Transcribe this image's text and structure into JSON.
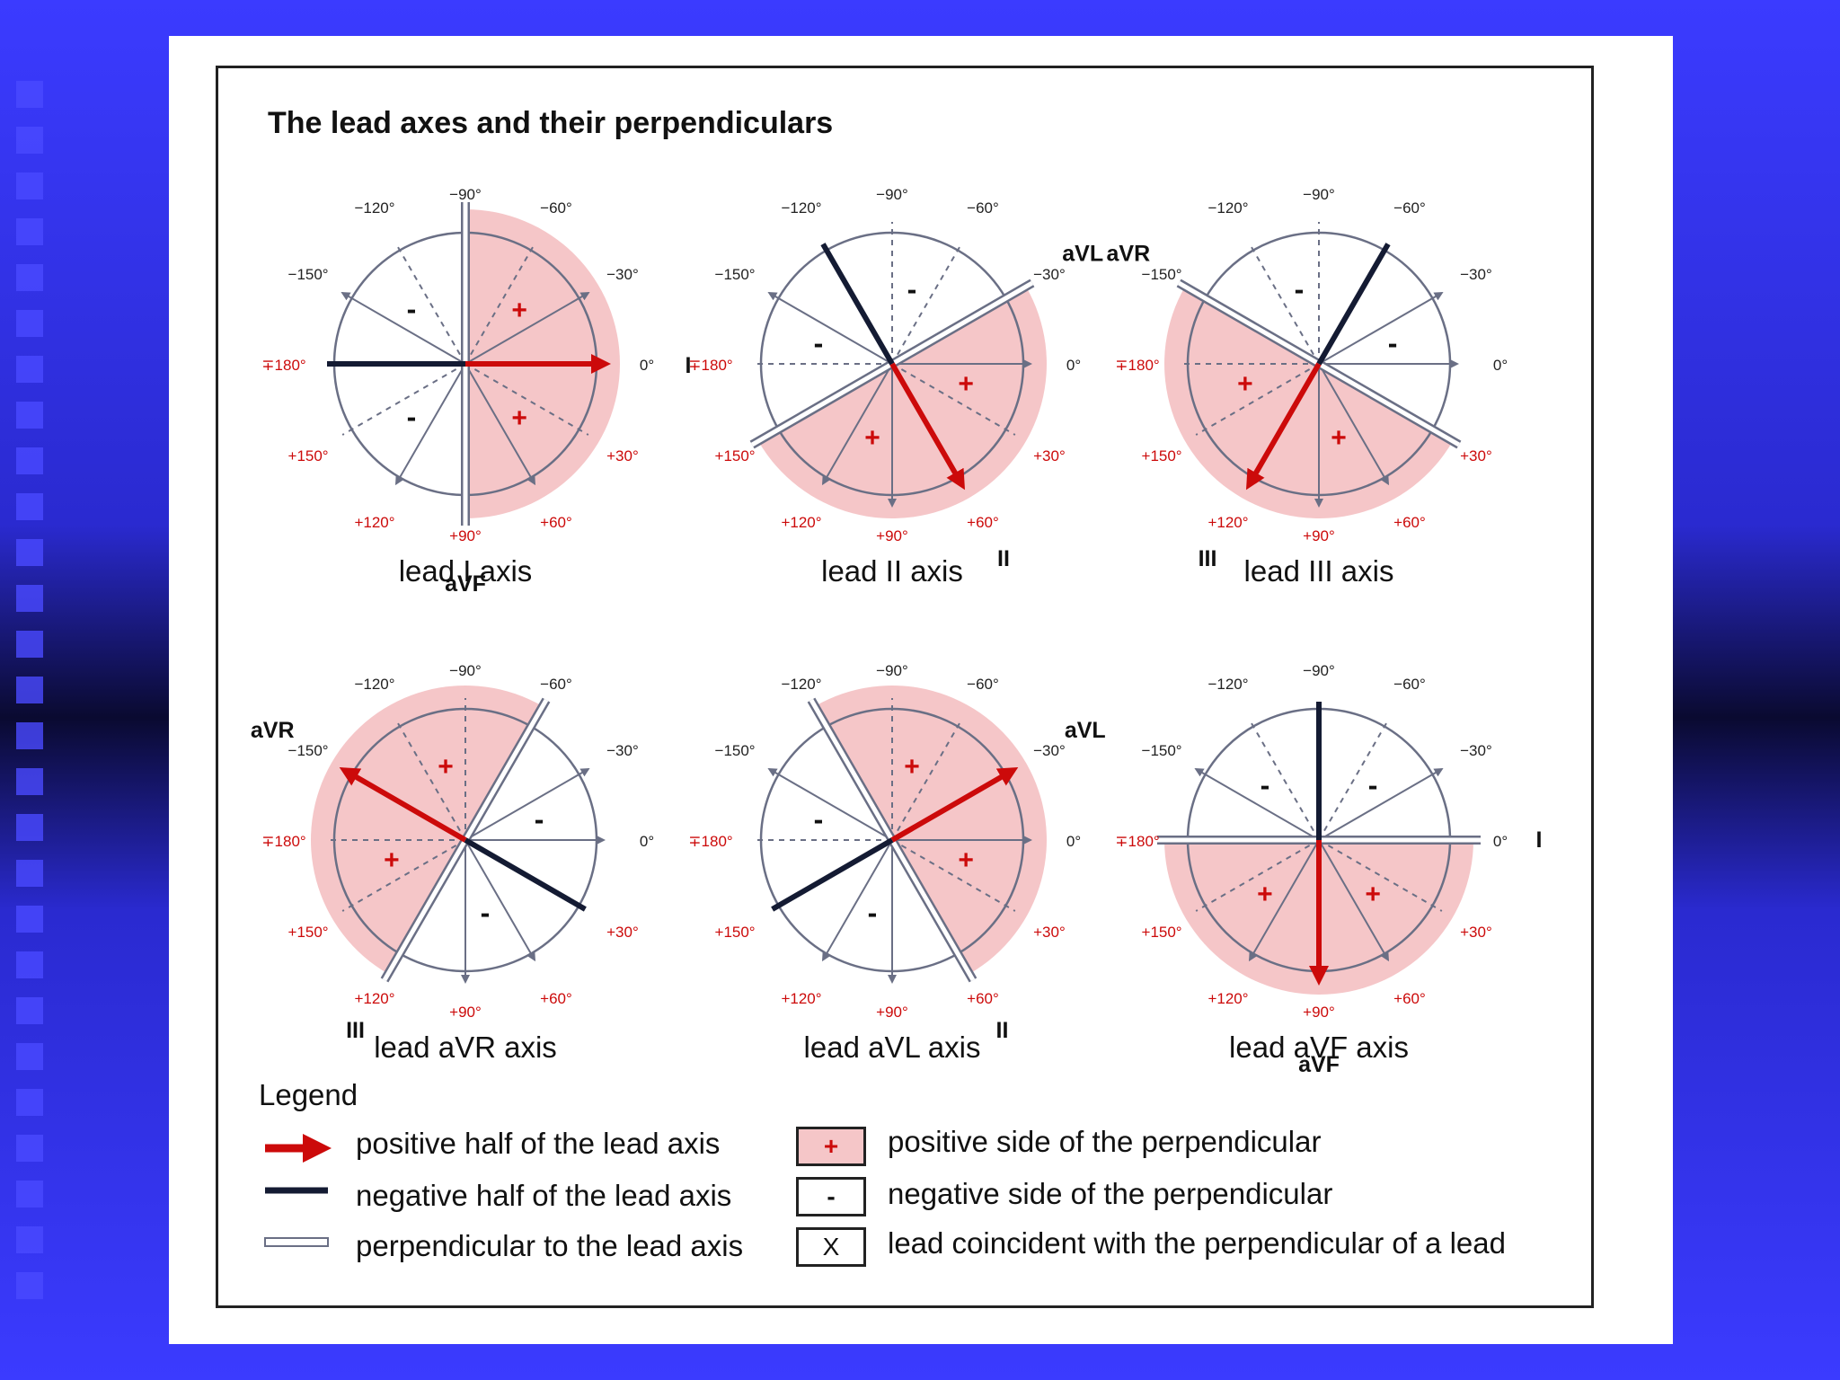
{
  "figure": {
    "title": "The lead axes and their perpendiculars"
  },
  "colors": {
    "positive": "#cc0a0a",
    "negative": "#141b33",
    "shade": "#f5c6c8",
    "axis": "#6a6f85"
  },
  "angle_labels": [
    "0°",
    "+30°",
    "+60°",
    "+90°",
    "+120°",
    "+150°",
    "∓180°",
    "−150°",
    "−120°",
    "−90°",
    "−60°",
    "−30°"
  ],
  "panels": [
    {
      "id": "lead-i",
      "caption": "lead I axis",
      "positive_angle": 0,
      "lead_label": "I",
      "perp_label": "aVF"
    },
    {
      "id": "lead-ii",
      "caption": "lead II axis",
      "positive_angle": 60,
      "lead_label": "II",
      "perp_label": "aVL"
    },
    {
      "id": "lead-iii",
      "caption": "lead III axis",
      "positive_angle": 120,
      "lead_label": "III",
      "perp_label": "aVR"
    },
    {
      "id": "lead-avr",
      "caption": "lead aVR axis",
      "positive_angle": -150,
      "lead_label": "aVR",
      "perp_label": "III"
    },
    {
      "id": "lead-avl",
      "caption": "lead aVL axis",
      "positive_angle": -30,
      "lead_label": "aVL",
      "perp_label": "II"
    },
    {
      "id": "lead-avf",
      "caption": "lead aVF axis",
      "positive_angle": 90,
      "lead_label": "aVF",
      "perp_label": "I"
    }
  ],
  "legend": {
    "title": "Legend",
    "positive_half": "positive half of the lead axis",
    "negative_half": "negative half of the lead axis",
    "perpendicular": "perpendicular to the lead axis",
    "positive_side": "positive side of the perpendicular",
    "negative_side": "negative side of the perpendicular",
    "coincident": "lead coincident with the perpendicular of a lead",
    "plus_symbol": "+",
    "minus_symbol": "-",
    "x_symbol": "X"
  }
}
